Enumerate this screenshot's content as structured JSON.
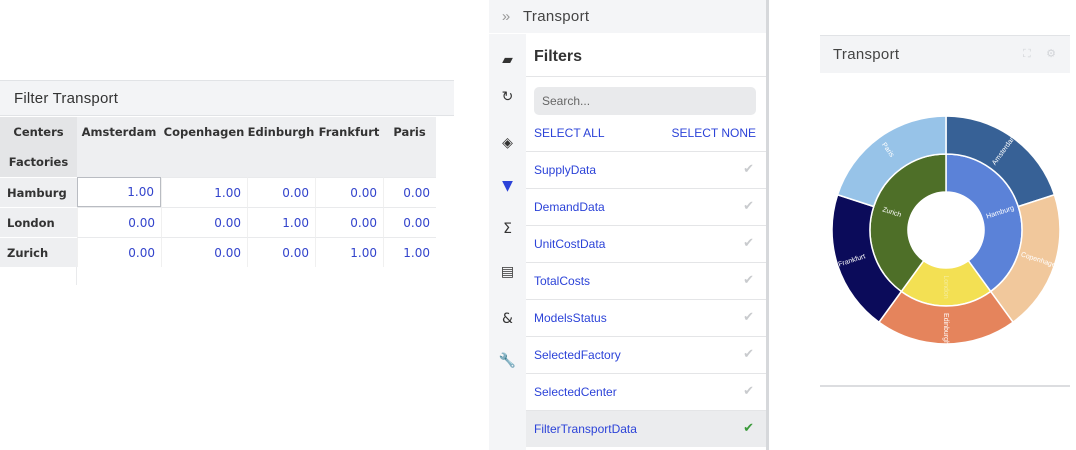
{
  "filter_transport": {
    "title": "Filter Transport",
    "corner_top": "Centers",
    "corner_bottom": "Factories",
    "columns": [
      "Amsterdam",
      "Copenhagen",
      "Edinburgh",
      "Frankfurt",
      "Paris"
    ],
    "rows": [
      {
        "label": "Hamburg",
        "values": [
          "1.00",
          "1.00",
          "0.00",
          "0.00",
          "0.00"
        ]
      },
      {
        "label": "London",
        "values": [
          "0.00",
          "0.00",
          "1.00",
          "0.00",
          "0.00"
        ]
      },
      {
        "label": "Zurich",
        "values": [
          "0.00",
          "0.00",
          "0.00",
          "1.00",
          "1.00"
        ]
      }
    ]
  },
  "transport_title": {
    "chevron": "»",
    "text": "Transport"
  },
  "iconbar": [
    {
      "name": "inbox-icon",
      "glyph": "▰"
    },
    {
      "name": "refresh-icon",
      "glyph": "↻"
    },
    {
      "name": "layers-icon",
      "glyph": "◈"
    },
    {
      "name": "filter-icon",
      "glyph": "▼"
    },
    {
      "name": "sigma-icon",
      "glyph": "Σ"
    },
    {
      "name": "document-icon",
      "glyph": "▤"
    },
    {
      "name": "ampersand-icon",
      "glyph": "&"
    },
    {
      "name": "wrench-icon",
      "glyph": "🔧"
    }
  ],
  "filters": {
    "title": "Filters",
    "search_placeholder": "Search...",
    "select_all": "SELECT ALL",
    "select_none": "SELECT NONE",
    "check_glyph": "✔",
    "items": [
      {
        "label": "SupplyData",
        "active": false
      },
      {
        "label": "DemandData",
        "active": false
      },
      {
        "label": "UnitCostData",
        "active": false
      },
      {
        "label": "TotalCosts",
        "active": false
      },
      {
        "label": "ModelsStatus",
        "active": false
      },
      {
        "label": "SelectedFactory",
        "active": false
      },
      {
        "label": "SelectedCenter",
        "active": false
      },
      {
        "label": "FilterTransportData",
        "active": true
      }
    ]
  },
  "chart_panel": {
    "title": "Transport",
    "header_icons": "⛶ ⚙"
  },
  "chart_data": {
    "type": "sunburst",
    "inner": [
      {
        "name": "Hamburg",
        "value": 2,
        "color": "#5b82d8"
      },
      {
        "name": "London",
        "value": 1,
        "color": "#f3e053"
      },
      {
        "name": "Zurich",
        "value": 2,
        "color": "#4e6f28"
      }
    ],
    "outer": [
      {
        "name": "Amsterdam",
        "parent": "Hamburg",
        "value": 1,
        "color": "#376196"
      },
      {
        "name": "Copenhagen",
        "parent": "Hamburg",
        "value": 1,
        "color": "#f1c89c"
      },
      {
        "name": "Edinburgh",
        "parent": "London",
        "value": 1,
        "color": "#e5845c"
      },
      {
        "name": "Frankfurt",
        "parent": "Zurich",
        "value": 1,
        "color": "#0b0b5a"
      },
      {
        "name": "Paris",
        "parent": "Zurich",
        "value": 1,
        "color": "#97c3e8"
      }
    ],
    "start_angle_deg": 0
  }
}
